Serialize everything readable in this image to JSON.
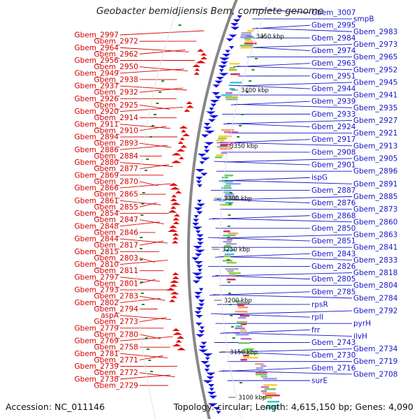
{
  "title": "Geobacter bemidjiensis Bem, complete genome",
  "footer": {
    "accession": "Accession: NC_011146",
    "stats": "Topology: circular; Length: 4,615,150 bp; Genes: 4,090"
  },
  "colors": {
    "left_labels": "#d40000",
    "right_labels": "#1414c8",
    "forward_strand": "#e00000",
    "reverse_strand": "#1010e0",
    "backbone": "#888888"
  },
  "position_markers": [
    "3450 kbp",
    "3400 kbp",
    "3350 kbp",
    "3300 kbp",
    "3250 kbp",
    "3200 kbp",
    "3150 kbp",
    "3100 kbp"
  ],
  "left_labels": [
    "Gbem_2997",
    "Gbem_2972",
    "Gbem_2964",
    "Gbem_2962",
    "Gbem_2956",
    "Gbem_2950",
    "Gbem_2949",
    "Gbem_2938",
    "Gbem_2937",
    "Gbem_2932",
    "Gbem_2926",
    "Gbem_2925",
    "Gbem_2920",
    "Gbem_2914",
    "Gbem_2911",
    "Gbem_2910",
    "Gbem_2894",
    "Gbem_2893",
    "Gbem_2886",
    "Gbem_2884",
    "Gbem_2880",
    "Gbem_2877",
    "Gbem_2869",
    "Gbem_2870",
    "Gbem_2866",
    "Gbem_2865",
    "Gbem_2861",
    "Gbem_2855",
    "Gbem_2854",
    "Gbem_2847",
    "Gbem_2848",
    "Gbem_2846",
    "Gbem_2844",
    "Gbem_2817",
    "Gbem_2815",
    "Gbem_2803",
    "Gbem_2810",
    "Gbem_2811",
    "Gbem_2797",
    "Gbem_2801",
    "Gbem_2793",
    "Gbem_2783",
    "Gbem_2802",
    "Gbem_2794",
    "aspA",
    "Gbem_2773",
    "Gbem_2779",
    "Gbem_2780",
    "Gbem_2769",
    "Gbem_2758",
    "Gbem_2781",
    "Gbem_2771",
    "Gbem_2739",
    "Gbem_2772",
    "Gbem_2738",
    "Gbem_2729"
  ],
  "right_labels": [
    "Gbem_3007",
    "smpB",
    "Gbem_2995",
    "Gbem_2983",
    "Gbem_2984",
    "Gbem_2973",
    "Gbem_2974",
    "Gbem_2965",
    "Gbem_2963",
    "Gbem_2952",
    "Gbem_2951",
    "Gbem_2945",
    "Gbem_2944",
    "Gbem_2941",
    "Gbem_2939",
    "Gbem_2935",
    "Gbem_2933",
    "Gbem_2927",
    "Gbem_2924",
    "Gbem_2921",
    "Gbem_2917",
    "Gbem_2913",
    "Gbem_2908",
    "Gbem_2905",
    "Gbem_2901",
    "Gbem_2896",
    "ispG",
    "Gbem_2891",
    "Gbem_2887",
    "Gbem_2885",
    "Gbem_2876",
    "Gbem_2873",
    "Gbem_2868",
    "Gbem_2860",
    "Gbem_2850",
    "Gbem_2863",
    "Gbem_2851",
    "Gbem_2841",
    "Gbem_2843",
    "Gbem_2833",
    "Gbem_2826",
    "Gbem_2818",
    "Gbem_2805",
    "Gbem_2804",
    "Gbem_2785",
    "Gbem_2784",
    "rpsR",
    "Gbem_2792",
    "rplI",
    "pyrH",
    "frr",
    "ilvH",
    "Gbem_2743",
    "Gbem_2734",
    "Gbem_2730",
    "Gbem_2719",
    "Gbem_2716",
    "Gbem_2708",
    "surE"
  ]
}
